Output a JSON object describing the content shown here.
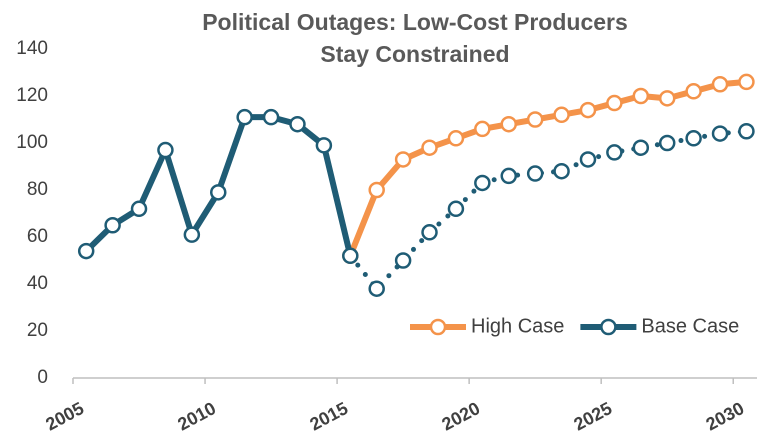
{
  "chart_data": {
    "type": "line",
    "title": "Political Outages: Low-Cost Producers Stay Constrained",
    "x": [
      2005.5,
      2006.5,
      2007.5,
      2008.5,
      2009.5,
      2010.5,
      2011.5,
      2012.5,
      2013.5,
      2014.5,
      2015.5,
      2016.5,
      2017.5,
      2018.5,
      2019.5,
      2020.5,
      2021.5,
      2022.5,
      2023.5,
      2024.5,
      2025.5,
      2026.5,
      2027.5,
      2028.5,
      2029.5,
      2030.5
    ],
    "series": [
      {
        "name": "High Case",
        "color": "#f4934a",
        "values": [
          null,
          null,
          null,
          null,
          null,
          null,
          null,
          null,
          null,
          null,
          52,
          80,
          93,
          98,
          102,
          106,
          108,
          110,
          112,
          114,
          117,
          120,
          119,
          122,
          125,
          126
        ]
      },
      {
        "name": "Base Case",
        "color": "#1f5c75",
        "values": [
          54,
          65,
          72,
          97,
          61,
          79,
          111,
          111,
          108,
          99,
          52,
          38,
          50,
          62,
          72,
          83,
          86,
          87,
          88,
          93,
          96,
          98,
          100,
          102,
          104,
          105
        ],
        "dotted_from": 2015.5
      }
    ],
    "xlim": [
      2005,
      2030.9
    ],
    "xticks": [
      2005,
      2010,
      2015,
      2020,
      2025,
      2030
    ],
    "ylim": [
      0,
      140
    ],
    "yticks": [
      0,
      20,
      40,
      60,
      80,
      100,
      120,
      140
    ],
    "grid": false,
    "legend": "lower right"
  }
}
